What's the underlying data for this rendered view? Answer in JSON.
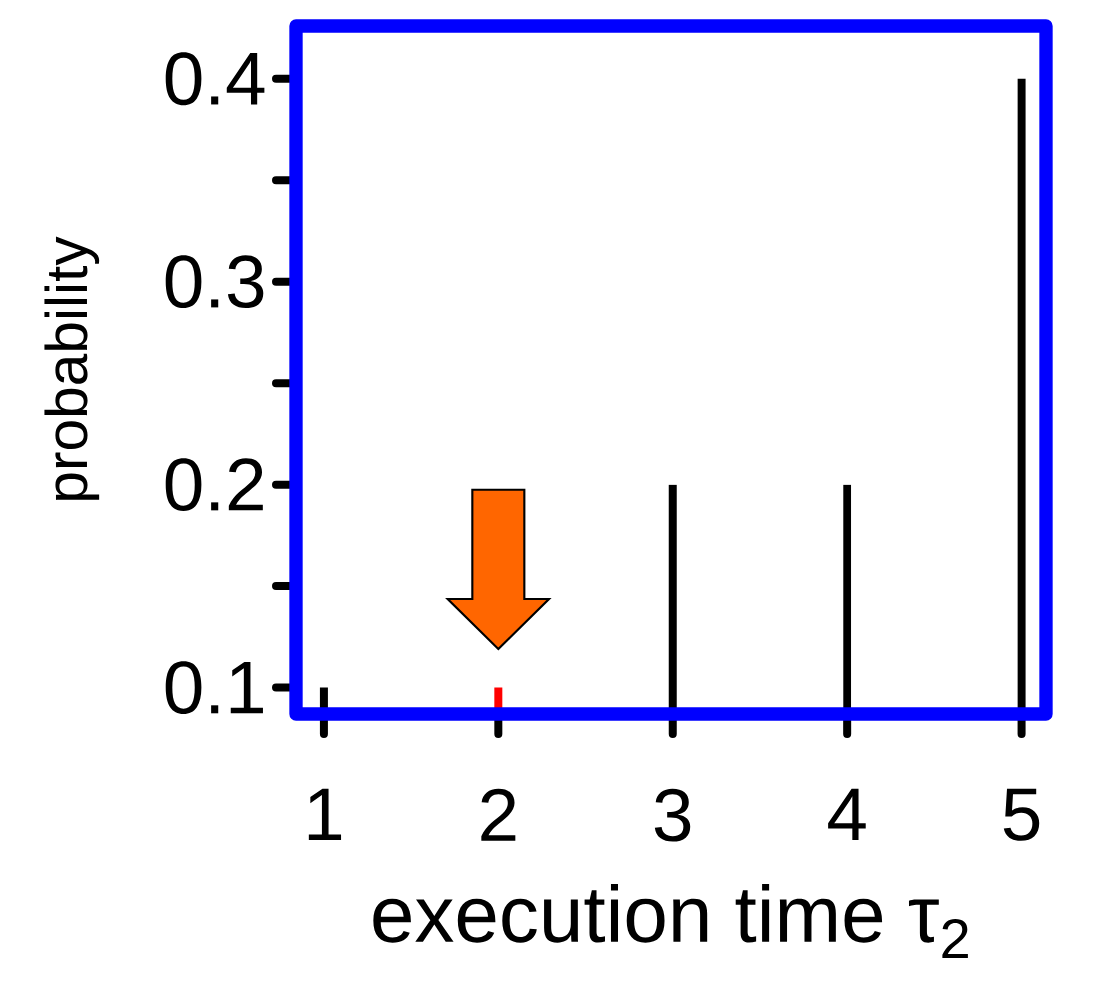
{
  "chart_data": {
    "type": "bar",
    "xlabel": "execution time τ$_{2}$",
    "ylabel": "probability",
    "x": [
      1,
      2,
      3,
      4,
      5
    ],
    "values": [
      0.1,
      0.1,
      0.2,
      0.2,
      0.4
    ],
    "colors": [
      "#000000",
      "#ff0000",
      "#000000",
      "#000000",
      "#000000"
    ],
    "xlim": [
      0.84,
      5.14
    ],
    "ylim": [
      0.087,
      0.426
    ],
    "xticks": [
      1,
      2,
      3,
      4,
      5
    ],
    "yticks": [
      0.1,
      {
        "value": 0.15,
        "label": null
      },
      0.2,
      {
        "value": 0.25,
        "label": null
      },
      0.3,
      {
        "value": 0.35,
        "label": null
      },
      0.4
    ]
  }
}
